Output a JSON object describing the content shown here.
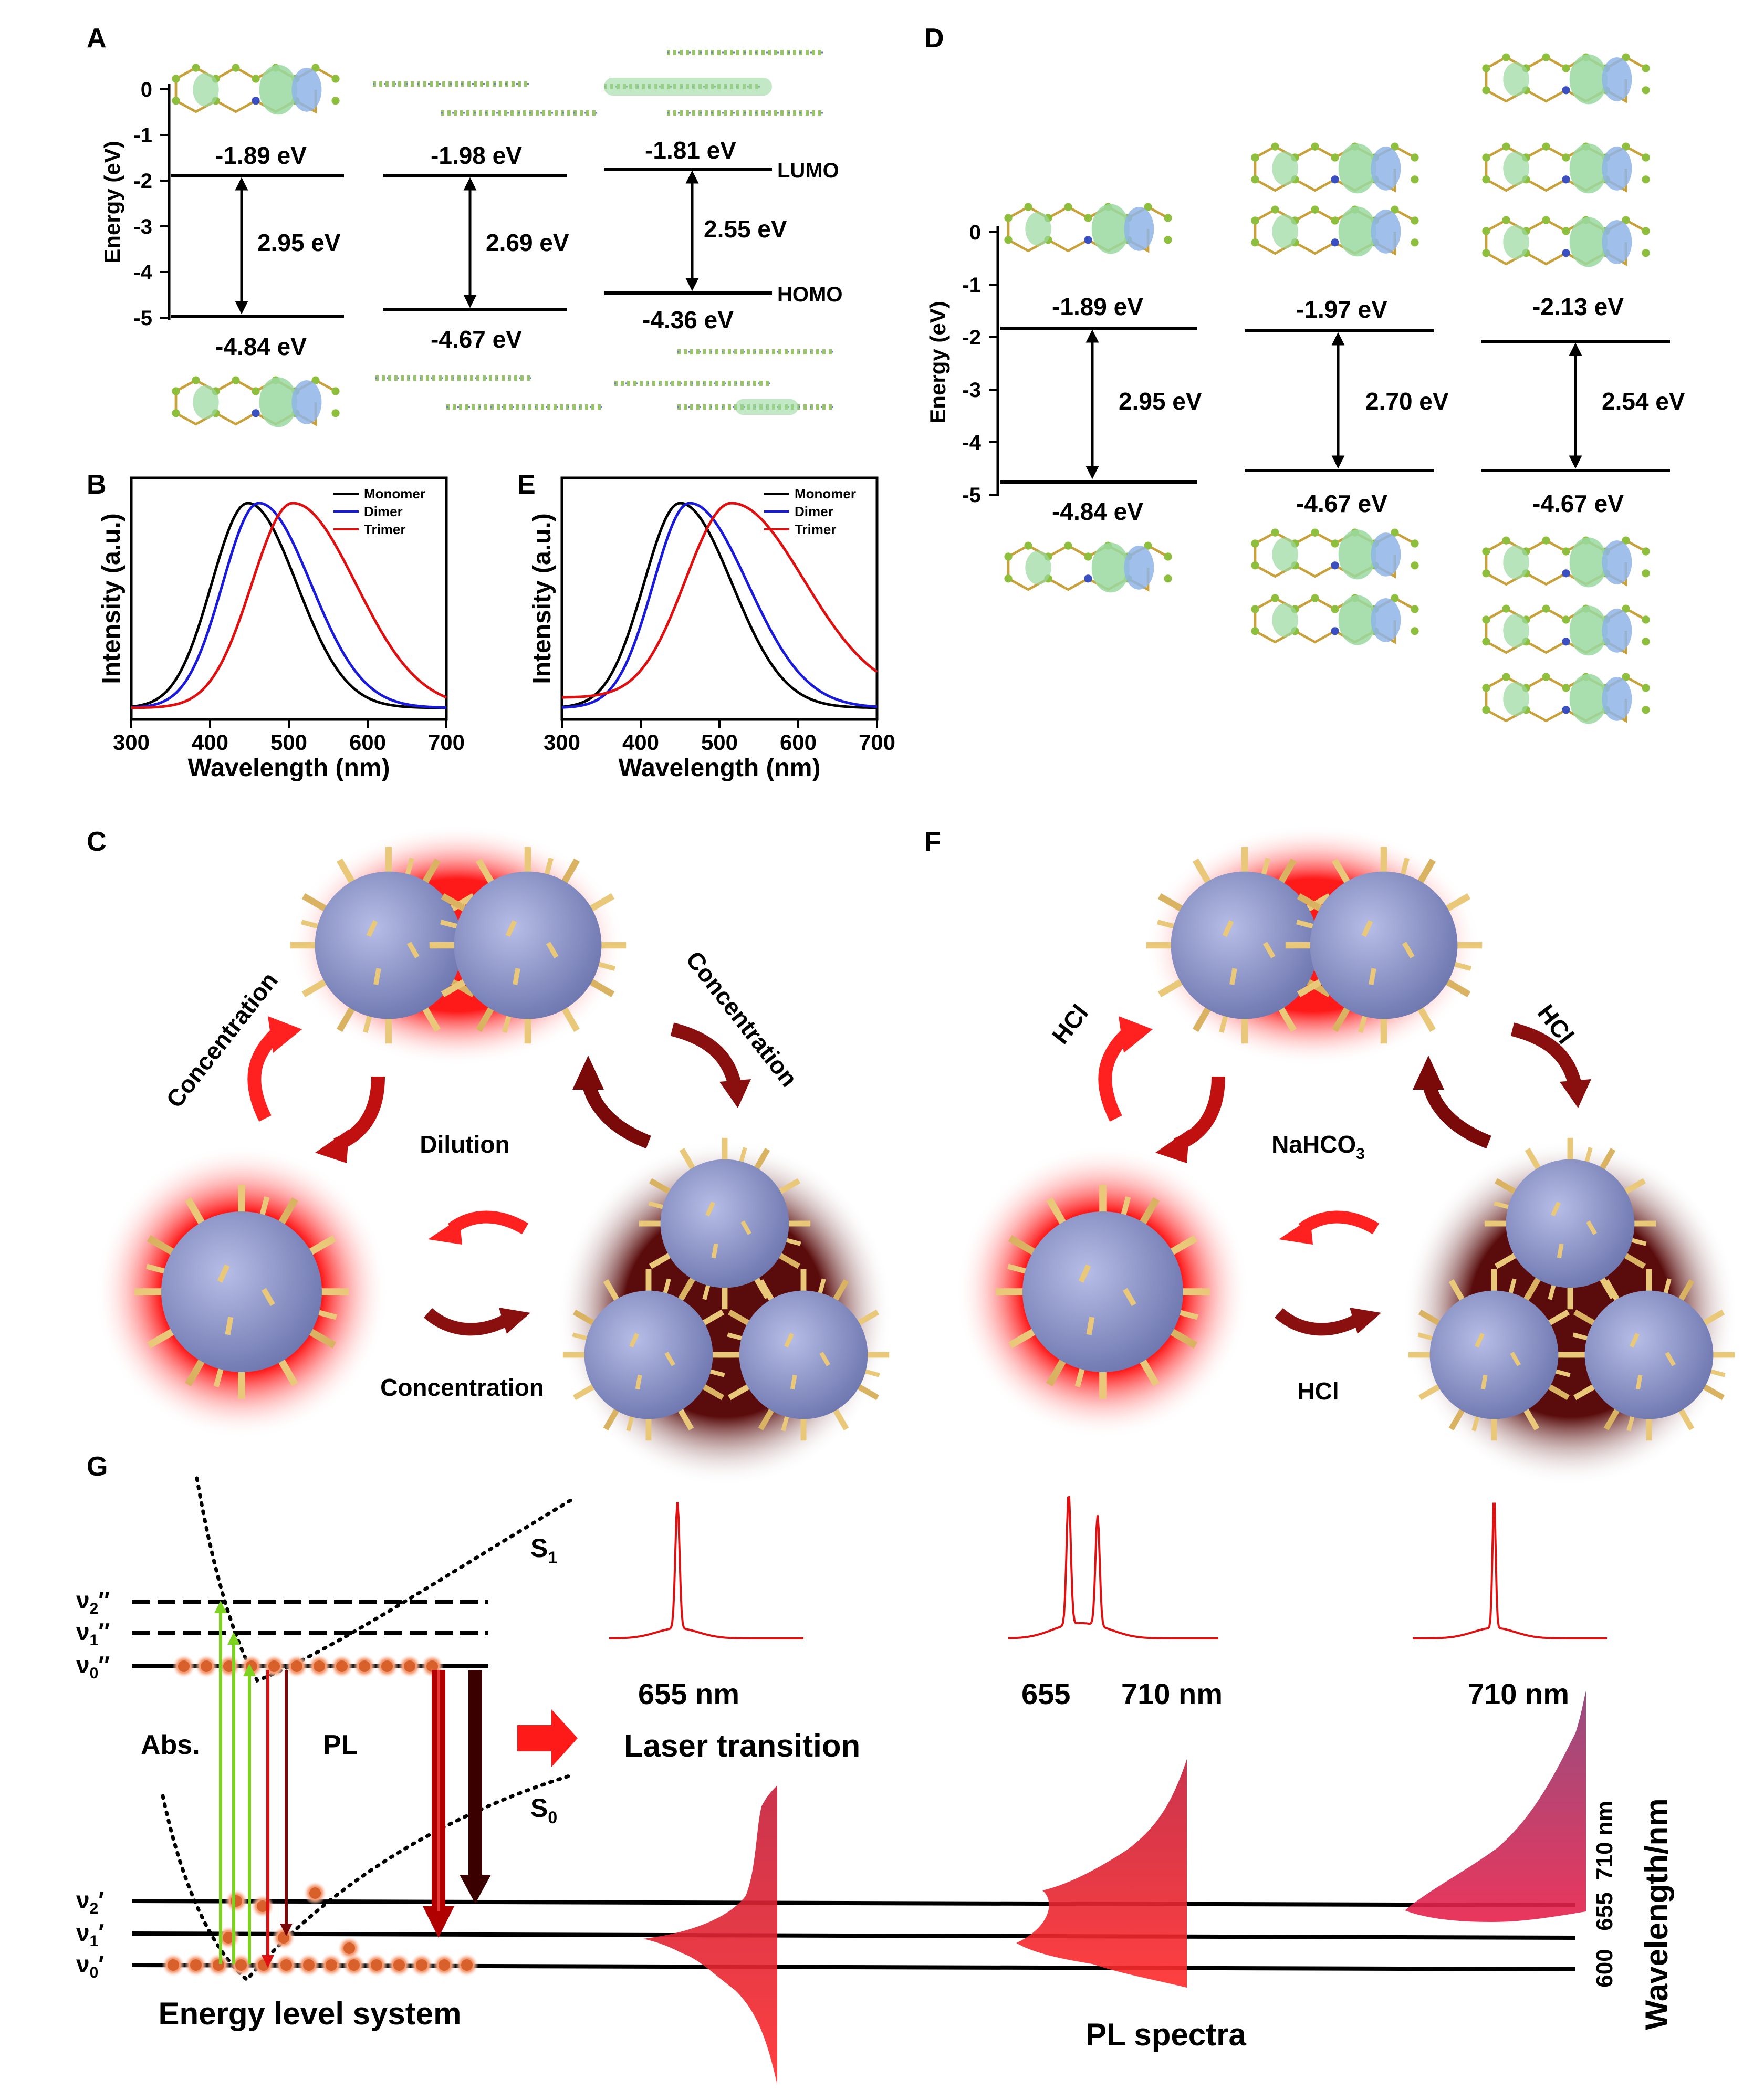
{
  "panel_labels": {
    "A": "A",
    "B": "B",
    "C": "C",
    "D": "D",
    "E": "E",
    "F": "F",
    "G": "G"
  },
  "panel_a": {
    "ylabel": "Energy (eV)",
    "yticks": [
      "0",
      "-1",
      "-2",
      "-3",
      "-4",
      "-5"
    ],
    "columns": [
      {
        "lumo": "-1.89 eV",
        "homo": "-4.84 eV",
        "gap": "2.95 eV"
      },
      {
        "lumo": "-1.98 eV",
        "homo": "-4.67 eV",
        "gap": "2.69 eV"
      },
      {
        "lumo": "-1.81 eV",
        "homo": "-4.36 eV",
        "gap": "2.55 eV"
      }
    ],
    "lumo_label": "LUMO",
    "homo_label": "HOMO"
  },
  "panel_d": {
    "ylabel": "Energy (eV)",
    "yticks": [
      "0",
      "-1",
      "-2",
      "-3",
      "-4",
      "-5"
    ],
    "columns": [
      {
        "lumo": "-1.89 eV",
        "homo": "-4.84 eV",
        "gap": "2.95 eV"
      },
      {
        "lumo": "-1.97 eV",
        "homo": "-4.67 eV",
        "gap": "2.70 eV"
      },
      {
        "lumo": "-2.13 eV",
        "homo": "-4.67 eV",
        "gap": "2.54 eV"
      }
    ]
  },
  "chart_data": [
    {
      "type": "line",
      "panel": "B",
      "xlabel": "Wavelength (nm)",
      "ylabel": "Intensity (a.u.)",
      "xlim": [
        300,
        700
      ],
      "xticks": [
        300,
        400,
        500,
        600,
        700
      ],
      "legend": "top-right",
      "series": [
        {
          "name": "Monomer",
          "color": "#000000",
          "peak": 448,
          "sigma_left": 46,
          "sigma_right": 62,
          "floor": 0.0
        },
        {
          "name": "Dimer",
          "color": "#1a1adb",
          "peak": 462,
          "sigma_left": 46,
          "sigma_right": 66,
          "floor": 0.0
        },
        {
          "name": "Trimer",
          "color": "#e01010",
          "peak": 505,
          "sigma_left": 52,
          "sigma_right": 80,
          "floor": 0.0
        }
      ]
    },
    {
      "type": "line",
      "panel": "E",
      "xlabel": "Wavelength (nm)",
      "ylabel": "Intensity (a.u.)",
      "xlim": [
        300,
        700
      ],
      "xticks": [
        300,
        400,
        500,
        600,
        700
      ],
      "legend": "top-right",
      "series": [
        {
          "name": "Monomer",
          "color": "#000000",
          "peak": 450,
          "sigma_left": 46,
          "sigma_right": 66,
          "floor": 0.0
        },
        {
          "name": "Dimer",
          "color": "#1a1adb",
          "peak": 462,
          "sigma_left": 46,
          "sigma_right": 74,
          "floor": 0.0
        },
        {
          "name": "Trimer",
          "color": "#e01010",
          "peak": 515,
          "sigma_left": 58,
          "sigma_right": 92,
          "floor": 0.05
        }
      ]
    }
  ],
  "panel_c": {
    "labels": [
      "Concentration",
      "Concentration",
      "Dilution",
      "Concentration"
    ]
  },
  "panel_f": {
    "labels": [
      "HCl",
      "HCl",
      "NaHCO",
      "3",
      "HCl"
    ]
  },
  "panel_g": {
    "levels_upper": [
      {
        "v": "ν",
        "sub": "2",
        "p": "″"
      },
      {
        "v": "ν",
        "sub": "1",
        "p": "″"
      },
      {
        "v": "ν",
        "sub": "0",
        "p": "″"
      }
    ],
    "levels_lower": [
      {
        "v": "ν",
        "sub": "2",
        "p": "′"
      },
      {
        "v": "ν",
        "sub": "1",
        "p": "′"
      },
      {
        "v": "ν",
        "sub": "0",
        "p": "′"
      }
    ],
    "s1": "S",
    "s1_sub": "1",
    "s0": "S",
    "s0_sub": "0",
    "abs": "Abs.",
    "pl": "PL",
    "laser_transition": "Laser transition",
    "energy_level_system": "Energy level system",
    "pl_spectra": "PL spectra",
    "wavelength_axis": "Wavelength/nm",
    "wavelength_ticks": [
      "600",
      "655",
      "710 nm"
    ],
    "laser_labels": [
      "655 nm",
      "655",
      "710 nm",
      "710 nm"
    ],
    "colors": {
      "red": "#e01010",
      "dark_red": "#7a0a0a",
      "green": "#7ed321",
      "orange": "#f08a50"
    }
  }
}
